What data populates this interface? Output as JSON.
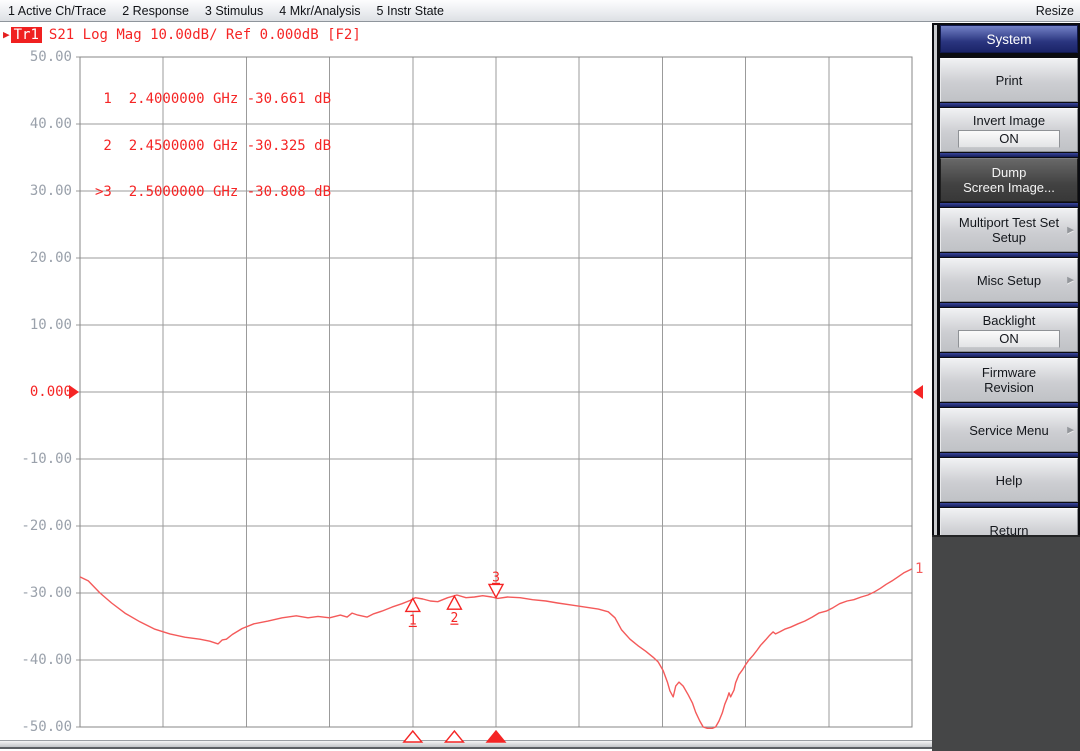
{
  "menu_bar": {
    "items": [
      "1 Active Ch/Trace",
      "2 Response",
      "3 Stimulus",
      "4 Mkr/Analysis",
      "5 Instr State"
    ],
    "resize_label": "Resize"
  },
  "trace_header": {
    "arrow": "▶",
    "badge": "Tr1",
    "text": "S21 Log Mag 10.00dB/ Ref 0.000dB [F2]"
  },
  "marker_table": {
    "rows": [
      " 1  2.4000000 GHz -30.661 dB",
      " 2  2.4500000 GHz -30.325 dB",
      ">3  2.5000000 GHz -30.808 dB"
    ]
  },
  "chart_data": {
    "type": "line",
    "title": "Tr1 S21 Log Mag 10.00dB/ Ref 0.000dB",
    "ylabel": "dB",
    "y_axis": {
      "max": 50,
      "min": -50,
      "db_per_div": 10,
      "ref_level_db": 0,
      "ticks": [
        "50.00",
        "40.00",
        "30.00",
        "20.00",
        "10.00",
        "0.000",
        "-10.00",
        "-20.00",
        "-30.00",
        "-40.00",
        "-50.00"
      ]
    },
    "x_axis": {
      "start_ghz": 2.0,
      "stop_ghz": 3.0,
      "divisions": 10,
      "tick_labels_visible": false
    },
    "grid": true,
    "trace_end_label": "1",
    "markers": [
      {
        "n": "1",
        "freq_ghz": 2.4,
        "value_db": -30.661,
        "active": false
      },
      {
        "n": "2",
        "freq_ghz": 2.45,
        "value_db": -30.325,
        "active": false
      },
      {
        "n": "3",
        "freq_ghz": 2.5,
        "value_db": -30.808,
        "active": true
      }
    ],
    "series": [
      {
        "name": "Tr1 S21",
        "color": "#f45a5a",
        "points": [
          [
            2.0,
            -27.6
          ],
          [
            2.01,
            -28.2
          ],
          [
            2.024,
            -30.0
          ],
          [
            2.038,
            -31.5
          ],
          [
            2.054,
            -33.0
          ],
          [
            2.072,
            -34.3
          ],
          [
            2.09,
            -35.4
          ],
          [
            2.108,
            -36.1
          ],
          [
            2.126,
            -36.6
          ],
          [
            2.144,
            -36.9
          ],
          [
            2.156,
            -37.2
          ],
          [
            2.166,
            -37.6
          ],
          [
            2.171,
            -37.0
          ],
          [
            2.176,
            -36.9
          ],
          [
            2.183,
            -36.2
          ],
          [
            2.195,
            -35.3
          ],
          [
            2.209,
            -34.6
          ],
          [
            2.226,
            -34.2
          ],
          [
            2.243,
            -33.7
          ],
          [
            2.26,
            -33.4
          ],
          [
            2.274,
            -33.7
          ],
          [
            2.286,
            -33.5
          ],
          [
            2.3,
            -33.7
          ],
          [
            2.313,
            -33.3
          ],
          [
            2.321,
            -33.6
          ],
          [
            2.327,
            -33.0
          ],
          [
            2.334,
            -33.3
          ],
          [
            2.345,
            -33.6
          ],
          [
            2.353,
            -33.1
          ],
          [
            2.363,
            -32.7
          ],
          [
            2.375,
            -32.1
          ],
          [
            2.387,
            -31.6
          ],
          [
            2.397,
            -31.1
          ],
          [
            2.403,
            -30.7
          ],
          [
            2.412,
            -30.9
          ],
          [
            2.421,
            -31.2
          ],
          [
            2.43,
            -31.3
          ],
          [
            2.442,
            -30.7
          ],
          [
            2.453,
            -30.3
          ],
          [
            2.464,
            -30.7
          ],
          [
            2.474,
            -30.6
          ],
          [
            2.484,
            -30.4
          ],
          [
            2.495,
            -30.6
          ],
          [
            2.502,
            -30.8
          ],
          [
            2.514,
            -30.6
          ],
          [
            2.529,
            -30.7
          ],
          [
            2.544,
            -31.0
          ],
          [
            2.56,
            -31.2
          ],
          [
            2.574,
            -31.5
          ],
          [
            2.591,
            -31.8
          ],
          [
            2.607,
            -32.1
          ],
          [
            2.623,
            -32.4
          ],
          [
            2.635,
            -32.8
          ],
          [
            2.643,
            -33.7
          ],
          [
            2.651,
            -35.5
          ],
          [
            2.661,
            -36.9
          ],
          [
            2.671,
            -37.9
          ],
          [
            2.68,
            -38.7
          ],
          [
            2.689,
            -39.6
          ],
          [
            2.695,
            -40.3
          ],
          [
            2.701,
            -41.6
          ],
          [
            2.706,
            -43.3
          ],
          [
            2.709,
            -44.6
          ],
          [
            2.713,
            -45.5
          ],
          [
            2.716,
            -43.9
          ],
          [
            2.72,
            -43.3
          ],
          [
            2.725,
            -43.9
          ],
          [
            2.731,
            -45.2
          ],
          [
            2.736,
            -46.4
          ],
          [
            2.74,
            -47.8
          ],
          [
            2.745,
            -49.1
          ],
          [
            2.749,
            -50.0
          ],
          [
            2.754,
            -50.2
          ],
          [
            2.76,
            -50.2
          ],
          [
            2.764,
            -50.0
          ],
          [
            2.768,
            -49.1
          ],
          [
            2.772,
            -47.9
          ],
          [
            2.775,
            -46.6
          ],
          [
            2.778,
            -45.7
          ],
          [
            2.78,
            -44.9
          ],
          [
            2.782,
            -45.5
          ],
          [
            2.786,
            -44.5
          ],
          [
            2.788,
            -43.4
          ],
          [
            2.792,
            -42.2
          ],
          [
            2.796,
            -41.5
          ],
          [
            2.8,
            -40.7
          ],
          [
            2.804,
            -40.0
          ],
          [
            2.809,
            -39.3
          ],
          [
            2.814,
            -38.5
          ],
          [
            2.818,
            -37.8
          ],
          [
            2.824,
            -37.0
          ],
          [
            2.829,
            -36.3
          ],
          [
            2.833,
            -35.8
          ],
          [
            2.836,
            -36.1
          ],
          [
            2.841,
            -35.8
          ],
          [
            2.847,
            -35.4
          ],
          [
            2.854,
            -35.1
          ],
          [
            2.863,
            -34.6
          ],
          [
            2.871,
            -34.2
          ],
          [
            2.88,
            -33.6
          ],
          [
            2.888,
            -33.0
          ],
          [
            2.897,
            -32.7
          ],
          [
            2.905,
            -32.2
          ],
          [
            2.913,
            -31.6
          ],
          [
            2.922,
            -31.2
          ],
          [
            2.93,
            -31.0
          ],
          [
            2.939,
            -30.6
          ],
          [
            2.947,
            -30.3
          ],
          [
            2.954,
            -29.9
          ],
          [
            2.962,
            -29.3
          ],
          [
            2.969,
            -28.7
          ],
          [
            2.976,
            -28.2
          ],
          [
            2.983,
            -27.6
          ],
          [
            2.99,
            -27.0
          ],
          [
            3.0,
            -26.4
          ]
        ]
      }
    ]
  },
  "sidebar": {
    "buttons": [
      {
        "label": "System"
      },
      {
        "label": "Print"
      },
      {
        "label": "Invert Image",
        "value": "ON"
      },
      {
        "line1": "Dump",
        "line2": "Screen Image..."
      },
      {
        "line1": "Multiport Test Set",
        "line2": "Setup"
      },
      {
        "label": "Misc Setup"
      },
      {
        "label": "Backlight",
        "value": "ON"
      },
      {
        "line1": "Firmware",
        "line2": "Revision"
      },
      {
        "label": "Service Menu"
      },
      {
        "label": "Help"
      },
      {
        "label": "Return"
      }
    ]
  },
  "colors": {
    "accent_red": "#f52525",
    "trace": "#f45a5a",
    "grid": "#9b9b9b",
    "plot_border": "#878787",
    "axis_label_gray": "#9aa1ab",
    "sidebar_header_navy": "#1b2468"
  }
}
